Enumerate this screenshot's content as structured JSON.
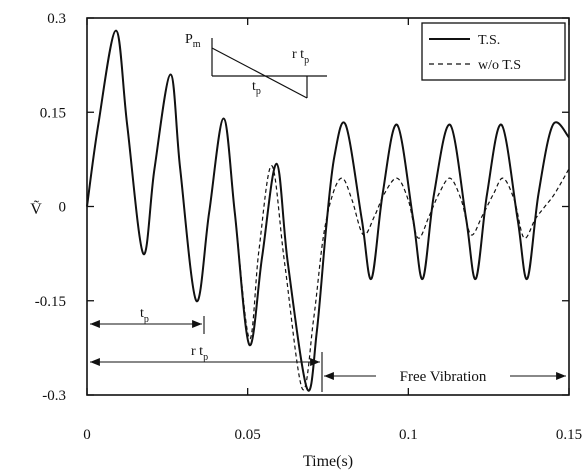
{
  "chart_data": {
    "type": "line",
    "xlabel": "Time(s)",
    "ylabel": "Ṽ",
    "xlim": [
      0,
      0.15
    ],
    "ylim": [
      -0.3,
      0.3
    ],
    "x_ticks": [
      "0",
      "0.05",
      "0.1",
      "0.15"
    ],
    "y_ticks": [
      "0.3",
      "0.15",
      "0",
      "-0.15",
      "-0.3"
    ],
    "grid": false,
    "legend_position": "top-right",
    "series": [
      {
        "name": "T.S.",
        "style": "solid",
        "points": [
          [
            0,
            0
          ],
          [
            0.0035,
            0.13
          ],
          [
            0.009,
            0.28
          ],
          [
            0.0125,
            0.13
          ],
          [
            0.0175,
            -0.075
          ],
          [
            0.021,
            0.06
          ],
          [
            0.026,
            0.21
          ],
          [
            0.029,
            0.06
          ],
          [
            0.034,
            -0.15
          ],
          [
            0.038,
            -0.01
          ],
          [
            0.0425,
            0.14
          ],
          [
            0.046,
            -0.01
          ],
          [
            0.0505,
            -0.22
          ],
          [
            0.0545,
            -0.08
          ],
          [
            0.059,
            0.068
          ],
          [
            0.0625,
            -0.09
          ],
          [
            0.0685,
            -0.29
          ],
          [
            0.0715,
            -0.2
          ],
          [
            0.0745,
            -0.03
          ],
          [
            0.077,
            0.08
          ],
          [
            0.0805,
            0.13
          ],
          [
            0.0855,
            -0.02
          ],
          [
            0.0885,
            -0.115
          ],
          [
            0.092,
            0.02
          ],
          [
            0.0965,
            0.13
          ],
          [
            0.1015,
            -0.02
          ],
          [
            0.1045,
            -0.115
          ],
          [
            0.108,
            0.02
          ],
          [
            0.113,
            0.13
          ],
          [
            0.118,
            -0.02
          ],
          [
            0.121,
            -0.115
          ],
          [
            0.1245,
            0.02
          ],
          [
            0.129,
            0.13
          ],
          [
            0.134,
            -0.02
          ],
          [
            0.137,
            -0.115
          ],
          [
            0.1405,
            0.02
          ],
          [
            0.145,
            0.13
          ],
          [
            0.15,
            0.11
          ]
        ]
      },
      {
        "name": "w/o T.S",
        "style": "dashed",
        "points": [
          [
            0,
            0
          ],
          [
            0.0035,
            0.13
          ],
          [
            0.009,
            0.28
          ],
          [
            0.0125,
            0.13
          ],
          [
            0.0175,
            -0.075
          ],
          [
            0.021,
            0.06
          ],
          [
            0.026,
            0.21
          ],
          [
            0.029,
            0.06
          ],
          [
            0.034,
            -0.15
          ],
          [
            0.038,
            -0.01
          ],
          [
            0.0425,
            0.14
          ],
          [
            0.046,
            -0.01
          ],
          [
            0.0505,
            -0.21
          ],
          [
            0.0535,
            -0.07
          ],
          [
            0.0575,
            0.065
          ],
          [
            0.0615,
            -0.09
          ],
          [
            0.067,
            -0.29
          ],
          [
            0.0705,
            -0.18
          ],
          [
            0.0735,
            -0.05
          ],
          [
            0.0765,
            0.02
          ],
          [
            0.0795,
            0.045
          ],
          [
            0.0825,
            0.01
          ],
          [
            0.086,
            -0.045
          ],
          [
            0.0895,
            -0.015
          ],
          [
            0.0925,
            0.02
          ],
          [
            0.0965,
            0.045
          ],
          [
            0.1,
            0.01
          ],
          [
            0.103,
            -0.05
          ],
          [
            0.1065,
            -0.015
          ],
          [
            0.1095,
            0.02
          ],
          [
            0.113,
            0.045
          ],
          [
            0.1165,
            0.01
          ],
          [
            0.1195,
            -0.045
          ],
          [
            0.123,
            -0.015
          ],
          [
            0.1265,
            0.02
          ],
          [
            0.1295,
            0.045
          ],
          [
            0.133,
            0.01
          ],
          [
            0.136,
            -0.05
          ],
          [
            0.1395,
            -0.02
          ],
          [
            0.1425,
            0.0
          ],
          [
            0.1455,
            0.02
          ],
          [
            0.15,
            0.06
          ]
        ]
      }
    ],
    "inset": {
      "labels": [
        "P",
        "m",
        "t",
        "p",
        "r t",
        "p"
      ],
      "shape": "linearly decreasing pulse from P_m at t=0, crossing zero at t_p, ending at r t_p"
    },
    "annotations": [
      {
        "label": "t",
        "sub": "p",
        "x_from": 0,
        "x_to": 0.038
      },
      {
        "label": "r t",
        "sub": "p",
        "x_from": 0,
        "x_to": 0.0715
      },
      {
        "label": "Free Vibration",
        "x_from": 0.0715,
        "x_to": 0.15
      }
    ]
  }
}
